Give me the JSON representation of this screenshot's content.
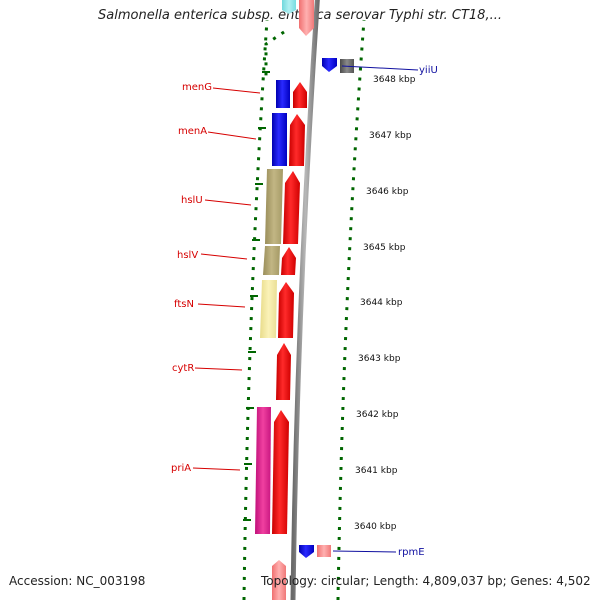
{
  "header": {
    "title": "Salmonella enterica subsp. enterica serovar Typhi str. CT18,..."
  },
  "footer": {
    "accession": "Accession: NC_003198",
    "summary": "Topology: circular; Length: 4,809,037 bp; Genes: 4,502"
  },
  "scale": {
    "ticks": [
      "3648 kbp",
      "3647 kbp",
      "3646 kbp",
      "3645 kbp",
      "3644 kbp",
      "3643 kbp",
      "3642 kbp",
      "3641 kbp",
      "3640 kbp"
    ]
  },
  "genes": {
    "left_labels": [
      "menG",
      "menA",
      "hslU",
      "hslV",
      "ftsN",
      "cytR",
      "priA"
    ],
    "right_labels": [
      "yiiU",
      "rpmE"
    ]
  },
  "colors": {
    "forward_cds": "#ff0000",
    "reverse_cds": "#0000ee",
    "olive_feature": "#b8ac78",
    "pale_yellow_feature": "#f5eaa0",
    "magenta_feature": "#e0208c",
    "gray_feature": "#666666",
    "pink_feature": "#ff8f8f",
    "cyan_feature": "#8fe5e8",
    "track_border": "#006600",
    "backbone": "#8a8a8a",
    "red_label": "#d60000",
    "blue_label": "#1010a0"
  }
}
